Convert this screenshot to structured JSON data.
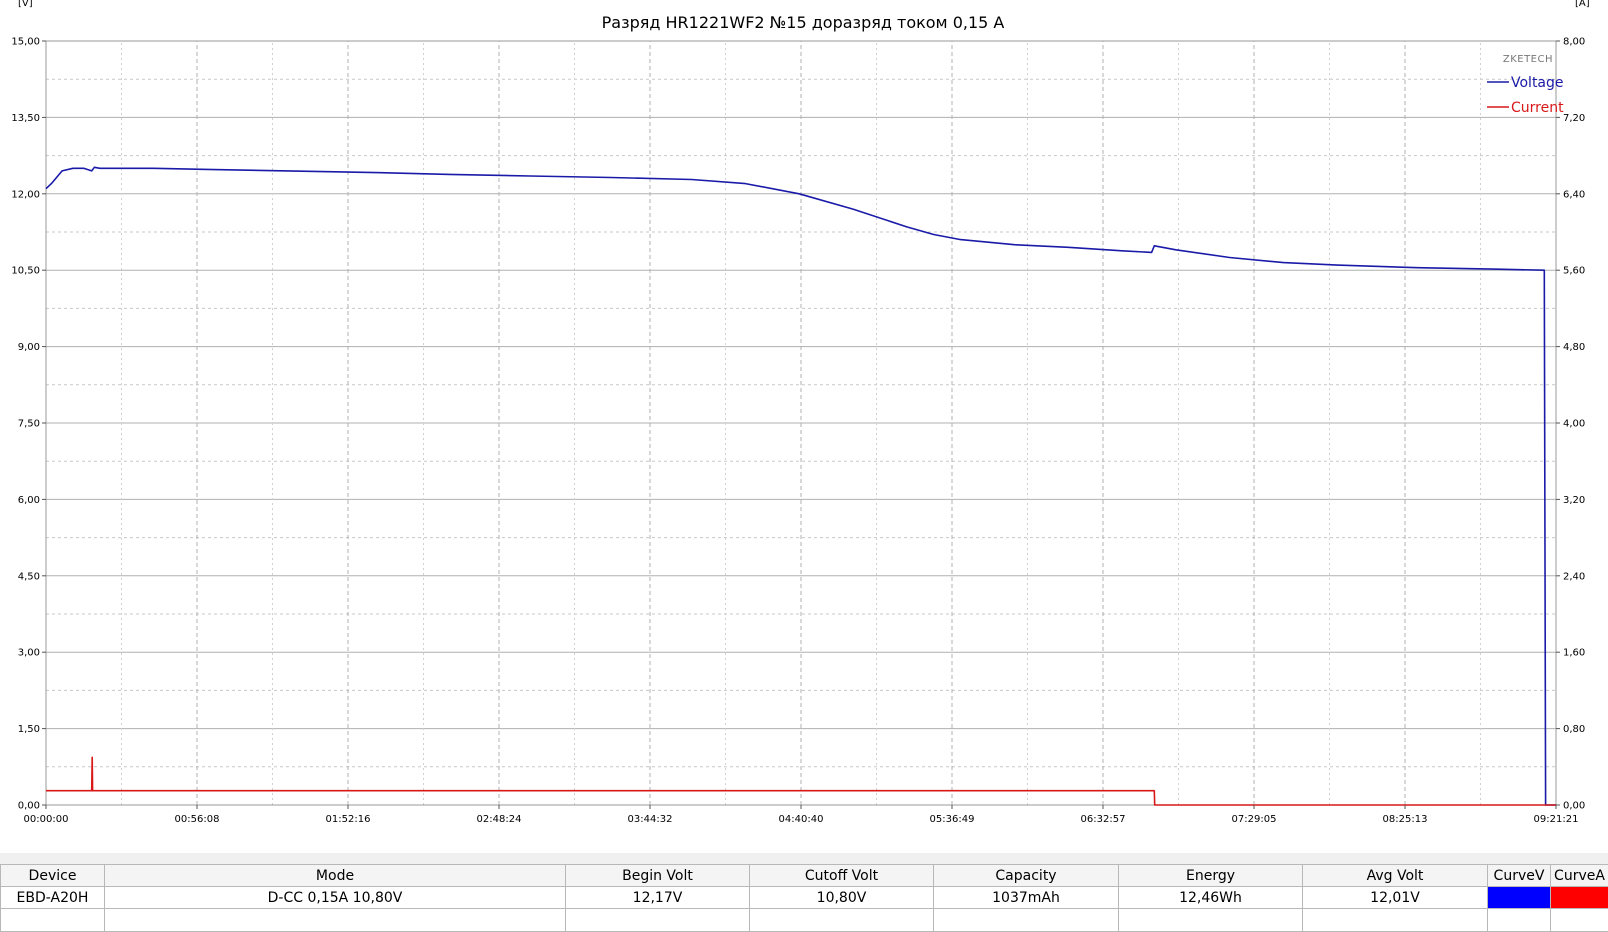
{
  "chart_data": {
    "type": "line",
    "title": "Разряд HR1221WF2 №15доразряд током 0,15 А",
    "title_display": "Разряд HR1221WF2 №15 доразряд током 0,15 А",
    "ylabel_left": "[V]",
    "ylabel_right": "[A]",
    "brand": "ZKETECH",
    "grid": true,
    "legend_position": "top-right",
    "x_ticks": [
      "00:00:00",
      "00:56:08",
      "01:52:16",
      "02:48:24",
      "03:44:32",
      "04:40:40",
      "05:36:49",
      "06:32:57",
      "07:29:05",
      "08:25:13",
      "09:21:21"
    ],
    "x_range_seconds": [
      0,
      33681
    ],
    "y_left_ticks": [
      "0,00",
      "1,50",
      "3,00",
      "4,50",
      "6,00",
      "7,50",
      "9,00",
      "10,50",
      "12,00",
      "13,50",
      "15,00"
    ],
    "y_left_range": [
      0,
      15
    ],
    "y_right_ticks": [
      "0,00",
      "0,80",
      "1,60",
      "2,40",
      "3,20",
      "4,00",
      "4,80",
      "5,60",
      "6,40",
      "7,20",
      "8,00"
    ],
    "y_right_range": [
      0,
      8
    ],
    "series": [
      {
        "name": "Voltage",
        "color": "#1a1aa8",
        "axis": "left",
        "x": [
          "00:00:00",
          "00:02:00",
          "00:06:00",
          "00:10:00",
          "00:14:00",
          "00:17:00",
          "00:18:00",
          "00:20:00",
          "00:40:00",
          "01:00:00",
          "01:30:00",
          "02:00:00",
          "02:30:00",
          "03:00:00",
          "03:30:00",
          "04:00:00",
          "04:20:00",
          "04:40:00",
          "05:00:00",
          "05:20:00",
          "05:30:00",
          "05:40:00",
          "06:00:00",
          "06:20:00",
          "06:40:00",
          "06:51:00",
          "06:52:00",
          "07:00:00",
          "07:20:00",
          "07:40:00",
          "08:00:00",
          "08:30:00",
          "09:00:00",
          "09:17:00",
          "09:17:30",
          "09:21:21"
        ],
        "values": [
          12.1,
          12.2,
          12.45,
          12.5,
          12.5,
          12.45,
          12.52,
          12.5,
          12.5,
          12.48,
          12.45,
          12.42,
          12.38,
          12.35,
          12.32,
          12.28,
          12.2,
          12.0,
          11.7,
          11.35,
          11.2,
          11.1,
          11.0,
          10.95,
          10.88,
          10.85,
          10.98,
          10.9,
          10.75,
          10.65,
          10.6,
          10.55,
          10.52,
          10.5,
          0.0,
          0.0
        ]
      },
      {
        "name": "Current",
        "color": "#d81818",
        "axis": "right",
        "x": [
          "00:00:00",
          "00:17:00",
          "00:17:10",
          "00:17:20",
          "00:17:40",
          "06:52:00",
          "06:52:10",
          "09:21:21"
        ],
        "values": [
          0.15,
          0.15,
          0.5,
          0.15,
          0.15,
          0.15,
          0.0,
          0.0
        ]
      }
    ]
  },
  "table": {
    "headers": [
      "Device",
      "Mode",
      "Begin Volt",
      "Cutoff Volt",
      "Capacity",
      "Energy",
      "Avg Volt",
      "CurveV",
      "CurveA"
    ],
    "row": [
      "EBD-A20H",
      "D-CC  0,15A  10,80V",
      "12,17V",
      "10,80V",
      "1037mAh",
      "12,46Wh",
      "12,01V",
      "",
      ""
    ],
    "curve_colors": {
      "CurveV": "#0000ff",
      "CurveA": "#ff0000"
    }
  }
}
